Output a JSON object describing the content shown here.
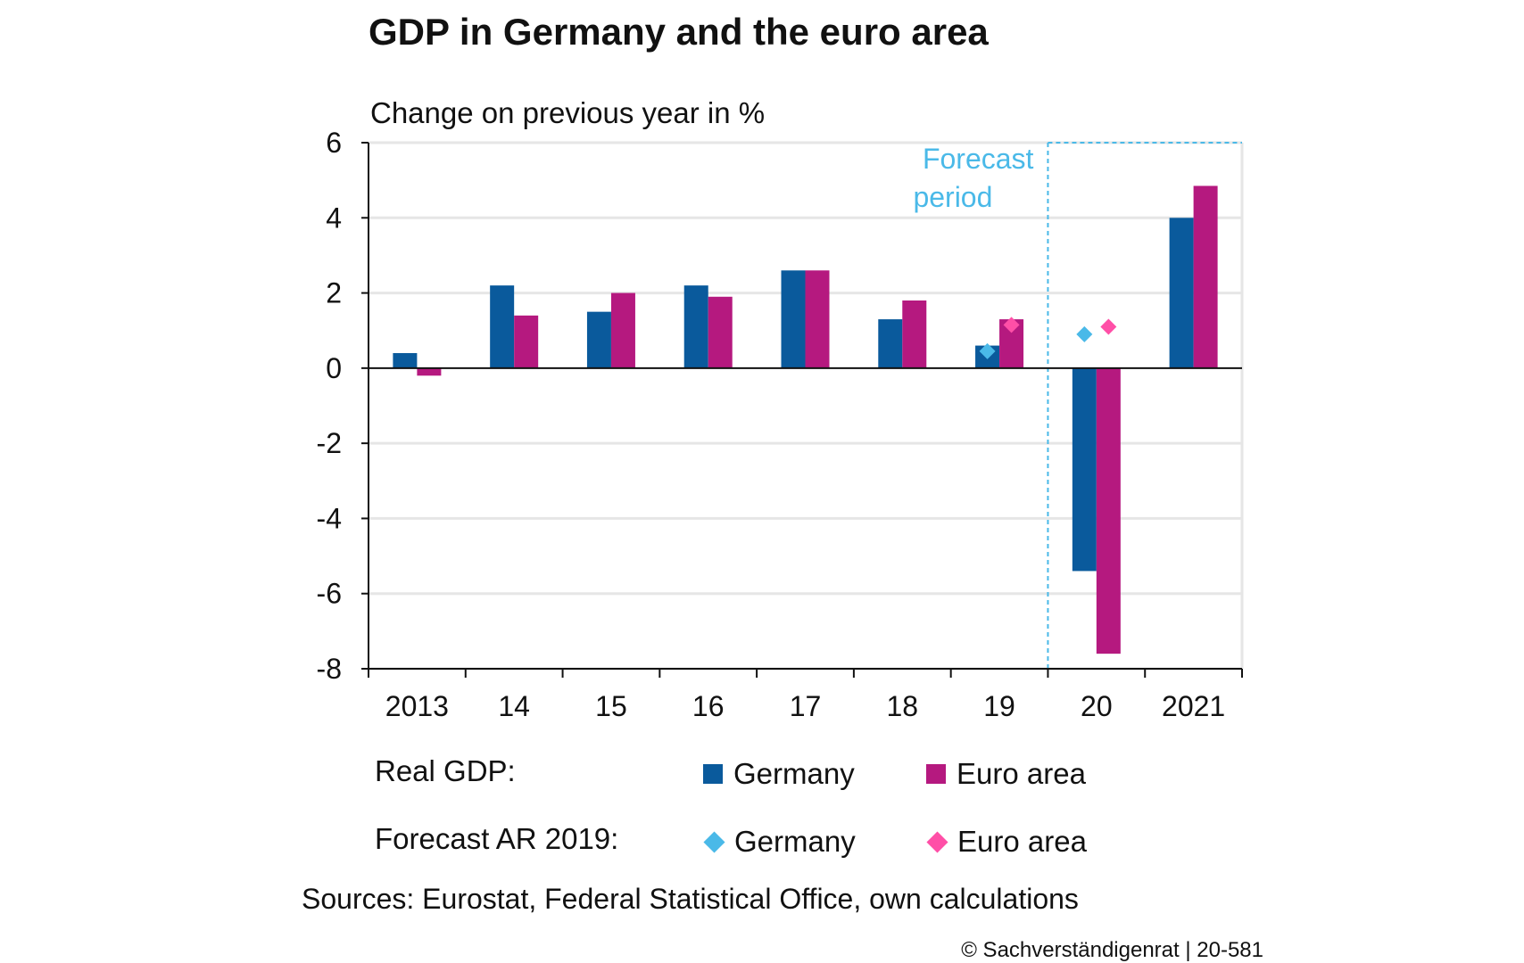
{
  "title": "GDP in Germany and the euro area",
  "chart_data": {
    "type": "bar",
    "title": "GDP in Germany and the euro area",
    "ylabel": "Change on previous year in %",
    "ylim": [
      -8,
      6
    ],
    "yticks": [
      6,
      4,
      2,
      0,
      -2,
      -4,
      -6,
      -8
    ],
    "categories": [
      "2013",
      "14",
      "15",
      "16",
      "17",
      "18",
      "19",
      "20",
      "2021"
    ],
    "series": [
      {
        "name": "Germany",
        "group": "Real GDP:",
        "color": "#0a5a9c",
        "values": [
          0.4,
          2.2,
          1.5,
          2.2,
          2.6,
          1.3,
          0.6,
          -5.4,
          4.0
        ]
      },
      {
        "name": "Euro area",
        "group": "Real GDP:",
        "color": "#b5197f",
        "values": [
          -0.2,
          1.4,
          2.0,
          1.9,
          2.6,
          1.8,
          1.3,
          -7.6,
          4.85
        ]
      }
    ],
    "forecast_markers": [
      {
        "name": "Germany",
        "group": "Forecast AR 2019:",
        "color": "#4ab9e8",
        "points": [
          {
            "category": "19",
            "value": 0.45
          },
          {
            "category": "20",
            "value": 0.9
          }
        ]
      },
      {
        "name": "Euro area",
        "group": "Forecast AR 2019:",
        "color": "#ff4fa7",
        "points": [
          {
            "category": "19",
            "value": 1.15
          },
          {
            "category": "20",
            "value": 1.1
          }
        ]
      }
    ],
    "forecast_period": {
      "label_line1": "Forecast",
      "label_line2": "period",
      "from_category": "20",
      "color": "#4ab9e8"
    },
    "grid": true
  },
  "legend": {
    "real_gdp_label": "Real GDP:",
    "forecast_label": "Forecast AR 2019:",
    "germany": "Germany",
    "euro_area": "Euro area"
  },
  "sources": "Sources: Eurostat, Federal Statistical Office, own calculations",
  "copyright": "© Sachverständigenrat | 20-581"
}
